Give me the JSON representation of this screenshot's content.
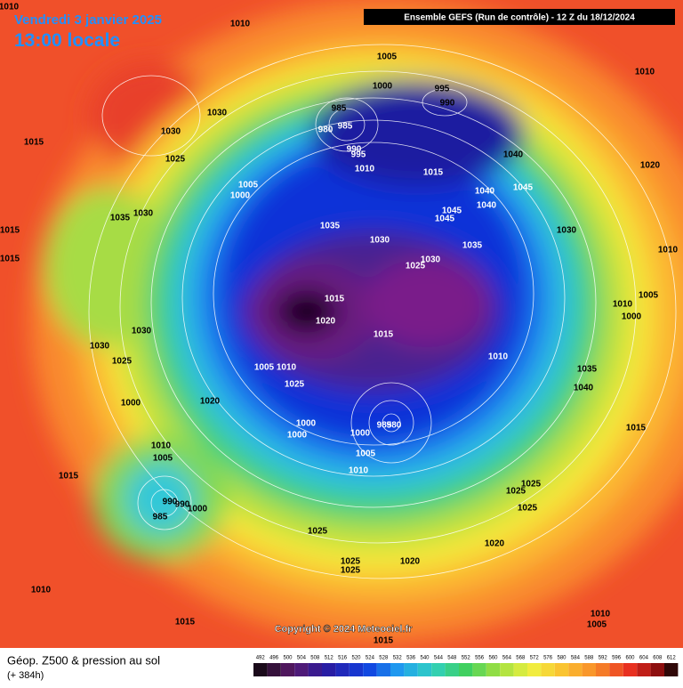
{
  "header": {
    "date": "Vendredi 3 janvier 2025",
    "time": "13:00 locale"
  },
  "run_box": "Ensemble GEFS  (Run de contrôle)  -  12 Z du 18/12/2024",
  "copyright": "Copyright © 2024 Meteociel.fr",
  "footer": {
    "title": "Géop. Z500 & pression au sol",
    "subtitle": "(+ 384h)"
  },
  "colorbar_ticks": [
    492,
    496,
    500,
    504,
    508,
    512,
    516,
    520,
    524,
    528,
    532,
    536,
    540,
    544,
    548,
    552,
    556,
    560,
    564,
    568,
    572,
    576,
    580,
    584,
    588,
    592,
    596,
    600,
    604,
    608,
    612
  ],
  "pressure_labels": [
    "1010",
    "1010",
    "1030",
    "1030",
    "1025",
    "1015",
    "1005",
    "1000",
    "995",
    "990",
    "985",
    "985",
    "980",
    "990",
    "995",
    "1010",
    "1015",
    "1040",
    "1045",
    "1040",
    "1040",
    "1045",
    "1045",
    "1030",
    "1010",
    "1020",
    "1010",
    "1005",
    "1010",
    "1000",
    "1035",
    "1040",
    "1015",
    "1005",
    "1000",
    "1035",
    "1030",
    "1035",
    "1030",
    "1030",
    "1025",
    "1035",
    "1015",
    "1020",
    "1015",
    "1010",
    "1015",
    "1015",
    "1030",
    "1030",
    "1025",
    "1005",
    "1010",
    "1025",
    "1020",
    "1000",
    "1000",
    "1000",
    "1000",
    "985",
    "980",
    "1005",
    "1010",
    "1010",
    "1005",
    "1015",
    "990",
    "990",
    "1000",
    "985",
    "1025",
    "1025",
    "1025",
    "1025",
    "1020",
    "1020",
    "1025",
    "1025",
    "1010",
    "1015",
    "1010",
    "1005",
    "1015"
  ]
}
